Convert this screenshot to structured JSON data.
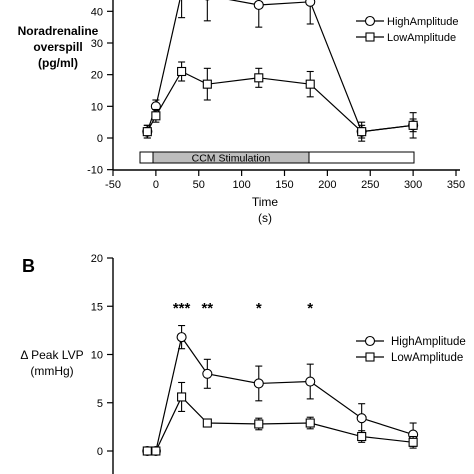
{
  "chart_data": [
    {
      "panel_label": "",
      "type": "line",
      "ylabel_lines": [
        "Noradrenaline",
        "overspill",
        "(pg/ml)"
      ],
      "xlabel_lines": [
        "Time",
        "(s)"
      ],
      "xlim": [
        -50,
        350
      ],
      "ylim": [
        -10,
        50
      ],
      "xticks": [
        "-50",
        "0",
        "50",
        "100",
        "150",
        "200",
        "250",
        "300",
        "350"
      ],
      "yticks": [
        "-10",
        "0",
        "10",
        "20",
        "30",
        "40"
      ],
      "stimulation_label": "CCM Stimulation",
      "stimulation_start": 0,
      "stimulation_end": 180,
      "protocol_start": -10,
      "protocol_end": 300,
      "legend_position": "top-right",
      "series": [
        {
          "name": "HighAmplitude",
          "marker": "circle",
          "x": [
            -10,
            0,
            30,
            60,
            120,
            180,
            240,
            300
          ],
          "y": [
            2,
            10,
            46,
            45,
            42,
            43,
            2,
            4
          ],
          "err": [
            2,
            2,
            8,
            8,
            7,
            7,
            3,
            4
          ]
        },
        {
          "name": "LowAmplitude",
          "marker": "square",
          "x": [
            -10,
            0,
            30,
            60,
            120,
            180,
            240,
            300
          ],
          "y": [
            2,
            7,
            21,
            17,
            19,
            17,
            2,
            4
          ],
          "err": [
            2,
            2,
            3,
            5,
            3,
            4,
            2,
            2
          ]
        }
      ]
    },
    {
      "panel_label": "B",
      "type": "line",
      "ylabel_lines": [
        "Δ Peak LVP",
        "(mmHg)"
      ],
      "xlim": [
        -50,
        350
      ],
      "ylim": [
        0,
        20
      ],
      "yticks": [
        "0",
        "5",
        "10",
        "15",
        "20"
      ],
      "legend_position": "right",
      "significance": [
        {
          "x": 30,
          "label": "***"
        },
        {
          "x": 60,
          "label": "**"
        },
        {
          "x": 120,
          "label": "*"
        },
        {
          "x": 180,
          "label": "*"
        }
      ],
      "series": [
        {
          "name": "HighAmplitude",
          "marker": "circle",
          "x": [
            -10,
            0,
            30,
            60,
            120,
            180,
            240,
            300
          ],
          "y": [
            0,
            0,
            11.8,
            8,
            7,
            7.2,
            3.4,
            1.7
          ],
          "err": [
            0,
            0.2,
            1.2,
            1.5,
            1.8,
            1.8,
            1.5,
            1.2
          ]
        },
        {
          "name": "LowAmplitude",
          "marker": "square",
          "x": [
            -10,
            0,
            30,
            60,
            120,
            180,
            240,
            300
          ],
          "y": [
            0,
            0,
            5.6,
            2.9,
            2.8,
            2.9,
            1.5,
            0.9
          ],
          "err": [
            0,
            0.2,
            1.5,
            0.3,
            0.6,
            0.6,
            0.6,
            0.6
          ]
        }
      ]
    }
  ]
}
